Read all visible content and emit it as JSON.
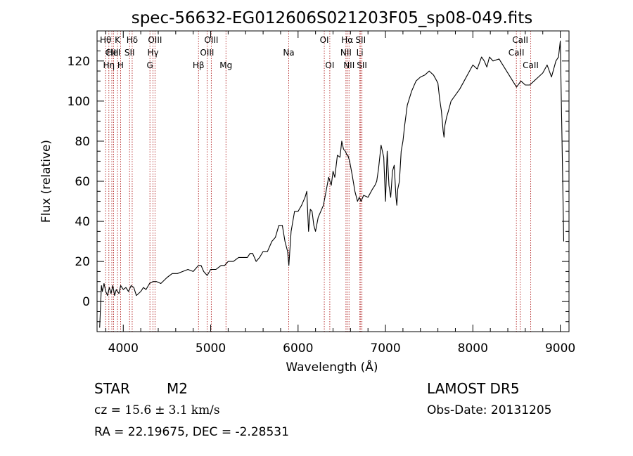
{
  "chart_data": {
    "type": "line",
    "title": "spec-56632-EG012606S021203F05_sp08-049.fits",
    "xlabel": "Wavelength (Å)",
    "ylabel": "Flux (relative)",
    "xlim": [
      3700,
      9100
    ],
    "ylim": [
      -15,
      135
    ],
    "xticks": [
      4000,
      5000,
      6000,
      7000,
      8000,
      9000
    ],
    "yticks": [
      0,
      20,
      40,
      60,
      80,
      100,
      120
    ],
    "grid": false,
    "line_color": "#000000",
    "marker_color": "#b22222",
    "spectrum": {
      "x": [
        3730,
        3750,
        3760,
        3780,
        3800,
        3820,
        3840,
        3860,
        3880,
        3900,
        3920,
        3950,
        3970,
        4000,
        4030,
        4060,
        4090,
        4120,
        4150,
        4200,
        4230,
        4260,
        4300,
        4340,
        4380,
        4430,
        4500,
        4560,
        4620,
        4680,
        4740,
        4800,
        4860,
        4890,
        4920,
        4960,
        5000,
        5060,
        5120,
        5160,
        5200,
        5260,
        5320,
        5380,
        5420,
        5450,
        5480,
        5520,
        5560,
        5600,
        5650,
        5700,
        5740,
        5780,
        5820,
        5850,
        5880,
        5895,
        5905,
        5920,
        5960,
        6000,
        6040,
        6080,
        6100,
        6120,
        6140,
        6160,
        6180,
        6200,
        6230,
        6260,
        6290,
        6320,
        6350,
        6380,
        6400,
        6420,
        6450,
        6480,
        6500,
        6520,
        6540,
        6560,
        6570,
        6590,
        6620,
        6650,
        6680,
        6700,
        6720,
        6750,
        6800,
        6850,
        6880,
        6900,
        6920,
        6950,
        6980,
        7000,
        7020,
        7040,
        7060,
        7080,
        7100,
        7120,
        7130,
        7140,
        7160,
        7180,
        7200,
        7220,
        7250,
        7300,
        7350,
        7400,
        7450,
        7500,
        7550,
        7600,
        7620,
        7640,
        7660,
        7670,
        7680,
        7700,
        7720,
        7750,
        7800,
        7850,
        7900,
        7950,
        8000,
        8050,
        8100,
        8130,
        8160,
        8190,
        8230,
        8300,
        8400,
        8500,
        8550,
        8600,
        8650,
        8700,
        8750,
        8800,
        8850,
        8900,
        8950,
        8980,
        9000,
        9020,
        9040
      ],
      "y": [
        -13,
        8,
        5,
        9,
        5,
        3,
        7,
        4,
        8,
        3,
        6,
        4,
        8,
        6,
        7,
        5,
        8,
        7,
        3,
        5,
        7,
        6,
        9,
        10,
        10,
        9,
        12,
        14,
        14,
        15,
        16,
        15,
        18,
        18,
        15,
        13,
        16,
        16,
        18,
        18,
        20,
        20,
        22,
        22,
        22,
        24,
        24,
        20,
        22,
        25,
        25,
        30,
        32,
        38,
        38,
        30,
        25,
        18,
        25,
        35,
        45,
        45,
        48,
        52,
        55,
        35,
        46,
        45,
        38,
        35,
        42,
        45,
        48,
        55,
        62,
        58,
        65,
        62,
        73,
        72,
        80,
        76,
        75,
        73,
        73,
        70,
        63,
        55,
        50,
        52,
        50,
        53,
        52,
        56,
        58,
        60,
        66,
        78,
        72,
        50,
        75,
        58,
        52,
        65,
        68,
        52,
        48,
        56,
        60,
        75,
        80,
        88,
        98,
        105,
        110,
        112,
        113,
        115,
        113,
        109,
        101,
        95,
        85,
        82,
        88,
        92,
        95,
        100,
        103,
        106,
        110,
        114,
        118,
        116,
        122,
        120,
        117,
        122,
        120,
        121,
        114,
        107,
        110,
        108,
        108,
        110,
        112,
        114,
        118,
        112,
        120,
        122,
        130,
        80,
        30
      ]
    },
    "line_markers": [
      {
        "wavelength": 3798,
        "label": "Hθ",
        "row": 1
      },
      {
        "wavelength": 3835,
        "label": "Hη",
        "row": 3
      },
      {
        "wavelength": 3869,
        "label": "CIII",
        "row": 2
      },
      {
        "wavelength": 3889,
        "label": "HeI",
        "row": 2
      },
      {
        "wavelength": 3934,
        "label": "K",
        "row": 1
      },
      {
        "wavelength": 3969,
        "label": "H",
        "row": 3
      },
      {
        "wavelength": 4072,
        "label": "SII",
        "row": 2
      },
      {
        "wavelength": 4102,
        "label": "Hδ",
        "row": 1
      },
      {
        "wavelength": 4305,
        "label": "G",
        "row": 3
      },
      {
        "wavelength": 4340,
        "label": "Hγ",
        "row": 2
      },
      {
        "wavelength": 4363,
        "label": "OIII",
        "row": 1
      },
      {
        "wavelength": 4861,
        "label": "Hβ",
        "row": 3
      },
      {
        "wavelength": 4959,
        "label": "OIII",
        "row": 2
      },
      {
        "wavelength": 5007,
        "label": "OIII",
        "row": 1
      },
      {
        "wavelength": 5175,
        "label": "Mg",
        "row": 3
      },
      {
        "wavelength": 5893,
        "label": "Na",
        "row": 2
      },
      {
        "wavelength": 6300,
        "label": "OI",
        "row": 1
      },
      {
        "wavelength": 6363,
        "label": "OI",
        "row": 3
      },
      {
        "wavelength": 6548,
        "label": "NII",
        "row": 2
      },
      {
        "wavelength": 6563,
        "label": "Hα",
        "row": 1
      },
      {
        "wavelength": 6583,
        "label": "NII",
        "row": 3
      },
      {
        "wavelength": 6707,
        "label": "Li",
        "row": 2
      },
      {
        "wavelength": 6716,
        "label": "SII",
        "row": 1
      },
      {
        "wavelength": 6731,
        "label": "SII",
        "row": 3
      },
      {
        "wavelength": 8498,
        "label": "CaII",
        "row": 2
      },
      {
        "wavelength": 8542,
        "label": "CaII",
        "row": 1
      },
      {
        "wavelength": 8662,
        "label": "CaII",
        "row": 3
      }
    ]
  },
  "footer": {
    "object_class": "STAR",
    "subclass": "M2",
    "cz_prefix": "cz = ",
    "cz_value": "15.6",
    "cz_pm": "±",
    "cz_err": "3.1",
    "cz_unit": "km/s",
    "radec": "RA =  22.19675, DEC =  -2.28531",
    "survey": "LAMOST  DR5",
    "obs_date": "Obs-Date: 20131205"
  }
}
